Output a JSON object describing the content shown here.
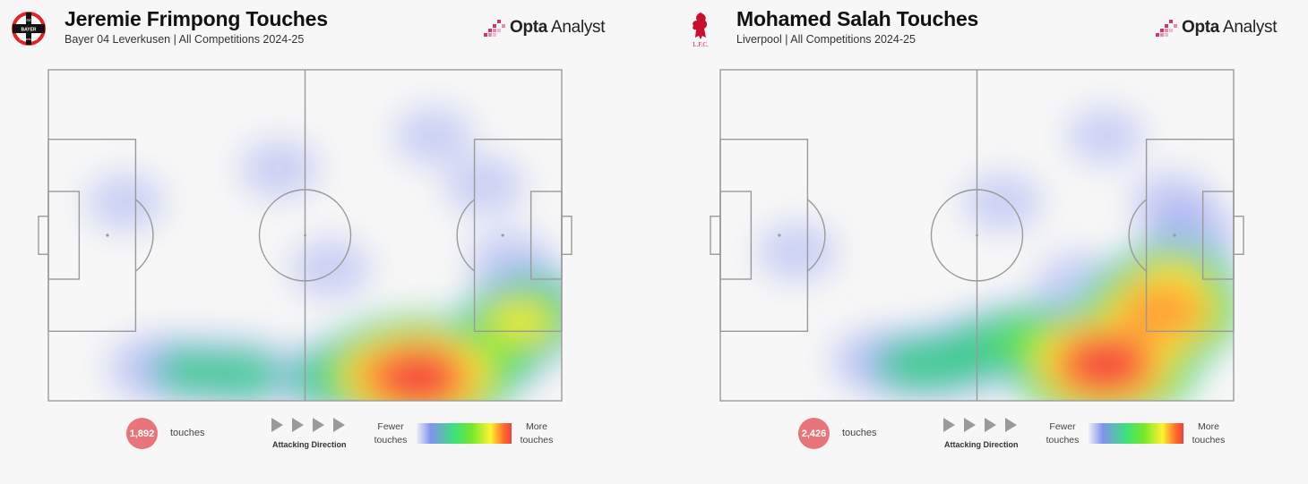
{
  "panels": [
    {
      "title": "Jeremie Frimpong Touches",
      "subtitle": "Bayer 04 Leverkusen | All Competitions 2024-25",
      "crest_icon": "leverkusen-crest-icon",
      "crest_text": [
        "BAYER",
        "04",
        "Leverkusen"
      ],
      "touches_count": "1,892",
      "touches_label": "touches",
      "hotspots": [
        {
          "x": 72,
          "y": 93,
          "i": 1.0
        },
        {
          "x": 66,
          "y": 92,
          "i": 0.75
        },
        {
          "x": 78,
          "y": 91,
          "i": 0.7
        },
        {
          "x": 86,
          "y": 86,
          "i": 0.45
        },
        {
          "x": 92,
          "y": 76,
          "i": 0.55
        },
        {
          "x": 95,
          "y": 70,
          "i": 0.3
        },
        {
          "x": 55,
          "y": 93,
          "i": 0.35
        },
        {
          "x": 38,
          "y": 92,
          "i": 0.3
        },
        {
          "x": 28,
          "y": 91,
          "i": 0.28
        },
        {
          "x": 20,
          "y": 90,
          "i": 0.15
        },
        {
          "x": 90,
          "y": 58,
          "i": 0.12
        },
        {
          "x": 55,
          "y": 60,
          "i": 0.08
        },
        {
          "x": 45,
          "y": 30,
          "i": 0.07
        },
        {
          "x": 75,
          "y": 20,
          "i": 0.06
        },
        {
          "x": 15,
          "y": 40,
          "i": 0.06
        },
        {
          "x": 85,
          "y": 35,
          "i": 0.07
        }
      ]
    },
    {
      "title": "Mohamed Salah Touches",
      "subtitle": "Liverpool | All Competitions 2024-25",
      "crest_icon": "liverpool-liverbird-icon",
      "crest_text": [
        "L.F.C."
      ],
      "touches_count": "2,426",
      "touches_label": "touches",
      "hotspots": [
        {
          "x": 75,
          "y": 89,
          "i": 1.0
        },
        {
          "x": 86,
          "y": 73,
          "i": 0.85
        },
        {
          "x": 83,
          "y": 80,
          "i": 0.7
        },
        {
          "x": 68,
          "y": 86,
          "i": 0.6
        },
        {
          "x": 88,
          "y": 65,
          "i": 0.6
        },
        {
          "x": 60,
          "y": 82,
          "i": 0.45
        },
        {
          "x": 52,
          "y": 84,
          "i": 0.35
        },
        {
          "x": 45,
          "y": 88,
          "i": 0.32
        },
        {
          "x": 38,
          "y": 89,
          "i": 0.32
        },
        {
          "x": 30,
          "y": 88,
          "i": 0.15
        },
        {
          "x": 92,
          "y": 50,
          "i": 0.2
        },
        {
          "x": 88,
          "y": 40,
          "i": 0.1
        },
        {
          "x": 70,
          "y": 65,
          "i": 0.15
        },
        {
          "x": 55,
          "y": 40,
          "i": 0.07
        },
        {
          "x": 15,
          "y": 55,
          "i": 0.08
        },
        {
          "x": 75,
          "y": 20,
          "i": 0.05
        }
      ]
    }
  ],
  "brand": {
    "bold": "Opta",
    "regular": "Analyst"
  },
  "legend": {
    "attacking_direction": "Attacking Direction",
    "fewer_line1": "Fewer",
    "fewer_line2": "touches",
    "more_line1": "More",
    "more_line2": "touches"
  },
  "chart_data": [
    {
      "type": "heatmap",
      "title": "Jeremie Frimpong Touches",
      "subtitle": "Bayer 04 Leverkusen | All Competitions 2024-25",
      "total_touches": 1892
    },
    {
      "type": "heatmap",
      "title": "Mohamed Salah Touches",
      "subtitle": "Liverpool | All Competitions 2024-25",
      "total_touches": 2426
    }
  ],
  "colors": {
    "pitch_line": "#9a9a9a",
    "badge": "#e8757a",
    "brand_accent": "#d6336c",
    "leverkusen_red": "#e32221",
    "liverpool_red": "#c8102e"
  }
}
